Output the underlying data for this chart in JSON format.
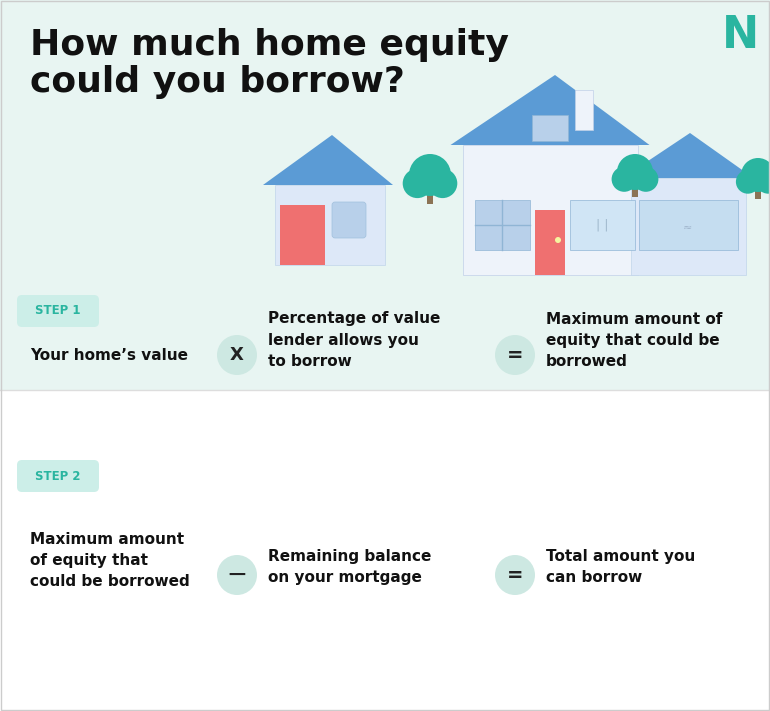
{
  "title_line1": "How much home equity",
  "title_line2": "could you borrow?",
  "bg_top_color": "#e8f5f2",
  "bg_bottom_color": "#ffffff",
  "step1_label": "STEP 1",
  "step2_label": "STEP 2",
  "step_badge_color": "#cceee8",
  "step_text_color": "#2ab5a0",
  "symbol_circle_color": "#cde8e2",
  "symbol_text_color": "#1a1a1a",
  "title_color": "#111111",
  "body_text_color": "#111111",
  "divider_color": "#dddddd",
  "logo_color": "#2ab5a0",
  "house_roof_color": "#5b9bd5",
  "house_wall_color": "#dde8f8",
  "house_wall2_color": "#eef3fa",
  "house_accent_color": "#ef7070",
  "tree_color": "#2ab5a0",
  "window_color": "#b8d0ea",
  "wave_color": "#dff2ee"
}
